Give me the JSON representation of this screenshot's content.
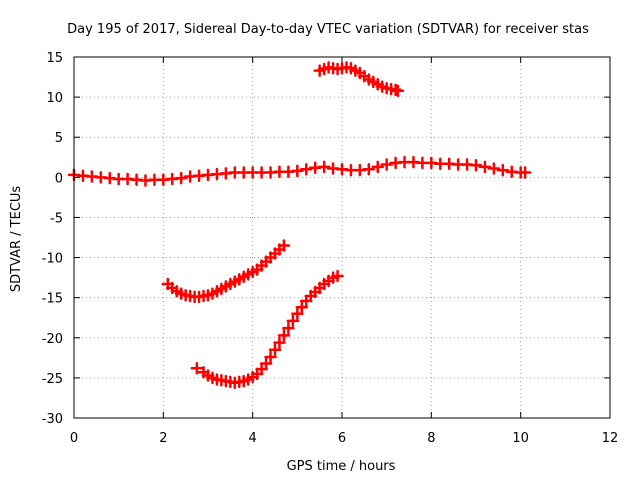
{
  "chart_data": {
    "type": "scatter",
    "title": "Day 195 of 2017, Sidereal Day-to-day VTEC variation (SDTVAR) for receiver stas",
    "xlabel": "GPS time / hours",
    "ylabel": "SDTVAR / TECUs",
    "xlim": [
      0,
      12
    ],
    "ylim": [
      -30,
      15
    ],
    "xticks": [
      0,
      2,
      4,
      6,
      8,
      10,
      12
    ],
    "yticks": [
      -30,
      -25,
      -20,
      -15,
      -10,
      -5,
      0,
      5,
      10,
      15
    ],
    "grid": true,
    "marker": "plus",
    "color": "#ff0000",
    "series": [
      {
        "name": "arc-near-zero",
        "x": [
          0.0,
          0.2,
          0.4,
          0.6,
          0.8,
          1.0,
          1.2,
          1.4,
          1.6,
          1.8,
          2.0,
          2.2,
          2.4,
          2.6,
          2.8,
          3.0,
          3.2,
          3.4,
          3.6,
          3.8,
          4.0,
          4.2,
          4.4,
          4.6,
          4.8,
          5.0,
          5.2,
          5.4,
          5.6,
          5.8,
          6.0,
          6.2,
          6.4,
          6.6,
          6.8,
          7.0,
          7.2,
          7.4,
          7.6,
          7.8,
          8.0,
          8.2,
          8.4,
          8.6,
          8.8,
          9.0,
          9.2,
          9.4,
          9.6,
          9.8,
          10.0,
          10.1
        ],
        "y": [
          0.3,
          0.2,
          0.1,
          0.0,
          -0.1,
          -0.2,
          -0.2,
          -0.3,
          -0.4,
          -0.3,
          -0.3,
          -0.2,
          -0.1,
          0.1,
          0.2,
          0.3,
          0.4,
          0.5,
          0.6,
          0.6,
          0.6,
          0.6,
          0.6,
          0.7,
          0.7,
          0.8,
          1.0,
          1.2,
          1.3,
          1.1,
          1.0,
          0.9,
          0.9,
          1.0,
          1.3,
          1.6,
          1.8,
          1.9,
          1.9,
          1.8,
          1.8,
          1.7,
          1.7,
          1.6,
          1.6,
          1.5,
          1.3,
          1.1,
          0.9,
          0.7,
          0.6,
          0.6
        ]
      },
      {
        "name": "arc-upper",
        "x": [
          5.5,
          5.6,
          5.7,
          5.8,
          5.9,
          6.0,
          6.1,
          6.2,
          6.3,
          6.4,
          6.5,
          6.6,
          6.7,
          6.8,
          6.9,
          7.0,
          7.1,
          7.2,
          7.25
        ],
        "y": [
          13.3,
          13.5,
          13.7,
          13.6,
          13.5,
          13.6,
          13.7,
          13.6,
          13.3,
          13.0,
          12.6,
          12.2,
          11.9,
          11.6,
          11.3,
          11.1,
          11.0,
          10.9,
          10.8
        ]
      },
      {
        "name": "arc-mid",
        "x": [
          2.1,
          2.2,
          2.3,
          2.4,
          2.5,
          2.6,
          2.7,
          2.8,
          2.9,
          3.0,
          3.1,
          3.2,
          3.3,
          3.4,
          3.5,
          3.6,
          3.7,
          3.8,
          3.9,
          4.0,
          4.1,
          4.2,
          4.3,
          4.4,
          4.5,
          4.6,
          4.7
        ],
        "y": [
          -13.3,
          -13.8,
          -14.2,
          -14.5,
          -14.7,
          -14.8,
          -14.9,
          -14.9,
          -14.8,
          -14.7,
          -14.5,
          -14.2,
          -13.9,
          -13.6,
          -13.3,
          -13.0,
          -12.7,
          -12.4,
          -12.1,
          -11.8,
          -11.5,
          -11.0,
          -10.5,
          -10.0,
          -9.5,
          -9.0,
          -8.5
        ]
      },
      {
        "name": "arc-lower",
        "x": [
          2.75,
          2.9,
          3.0,
          3.1,
          3.2,
          3.3,
          3.4,
          3.5,
          3.6,
          3.7,
          3.8,
          3.9,
          4.0,
          4.1,
          4.2,
          4.3,
          4.4,
          4.5,
          4.6,
          4.7,
          4.8,
          4.9,
          5.0,
          5.1,
          5.2,
          5.3,
          5.4,
          5.5,
          5.6,
          5.7,
          5.8,
          5.9
        ],
        "y": [
          -23.8,
          -24.3,
          -24.7,
          -25.0,
          -25.2,
          -25.3,
          -25.4,
          -25.5,
          -25.6,
          -25.5,
          -25.4,
          -25.2,
          -24.9,
          -24.5,
          -23.9,
          -23.2,
          -22.4,
          -21.5,
          -20.6,
          -19.7,
          -18.8,
          -17.9,
          -17.0,
          -16.2,
          -15.4,
          -14.8,
          -14.3,
          -13.8,
          -13.3,
          -12.9,
          -12.5,
          -12.3
        ]
      }
    ]
  }
}
